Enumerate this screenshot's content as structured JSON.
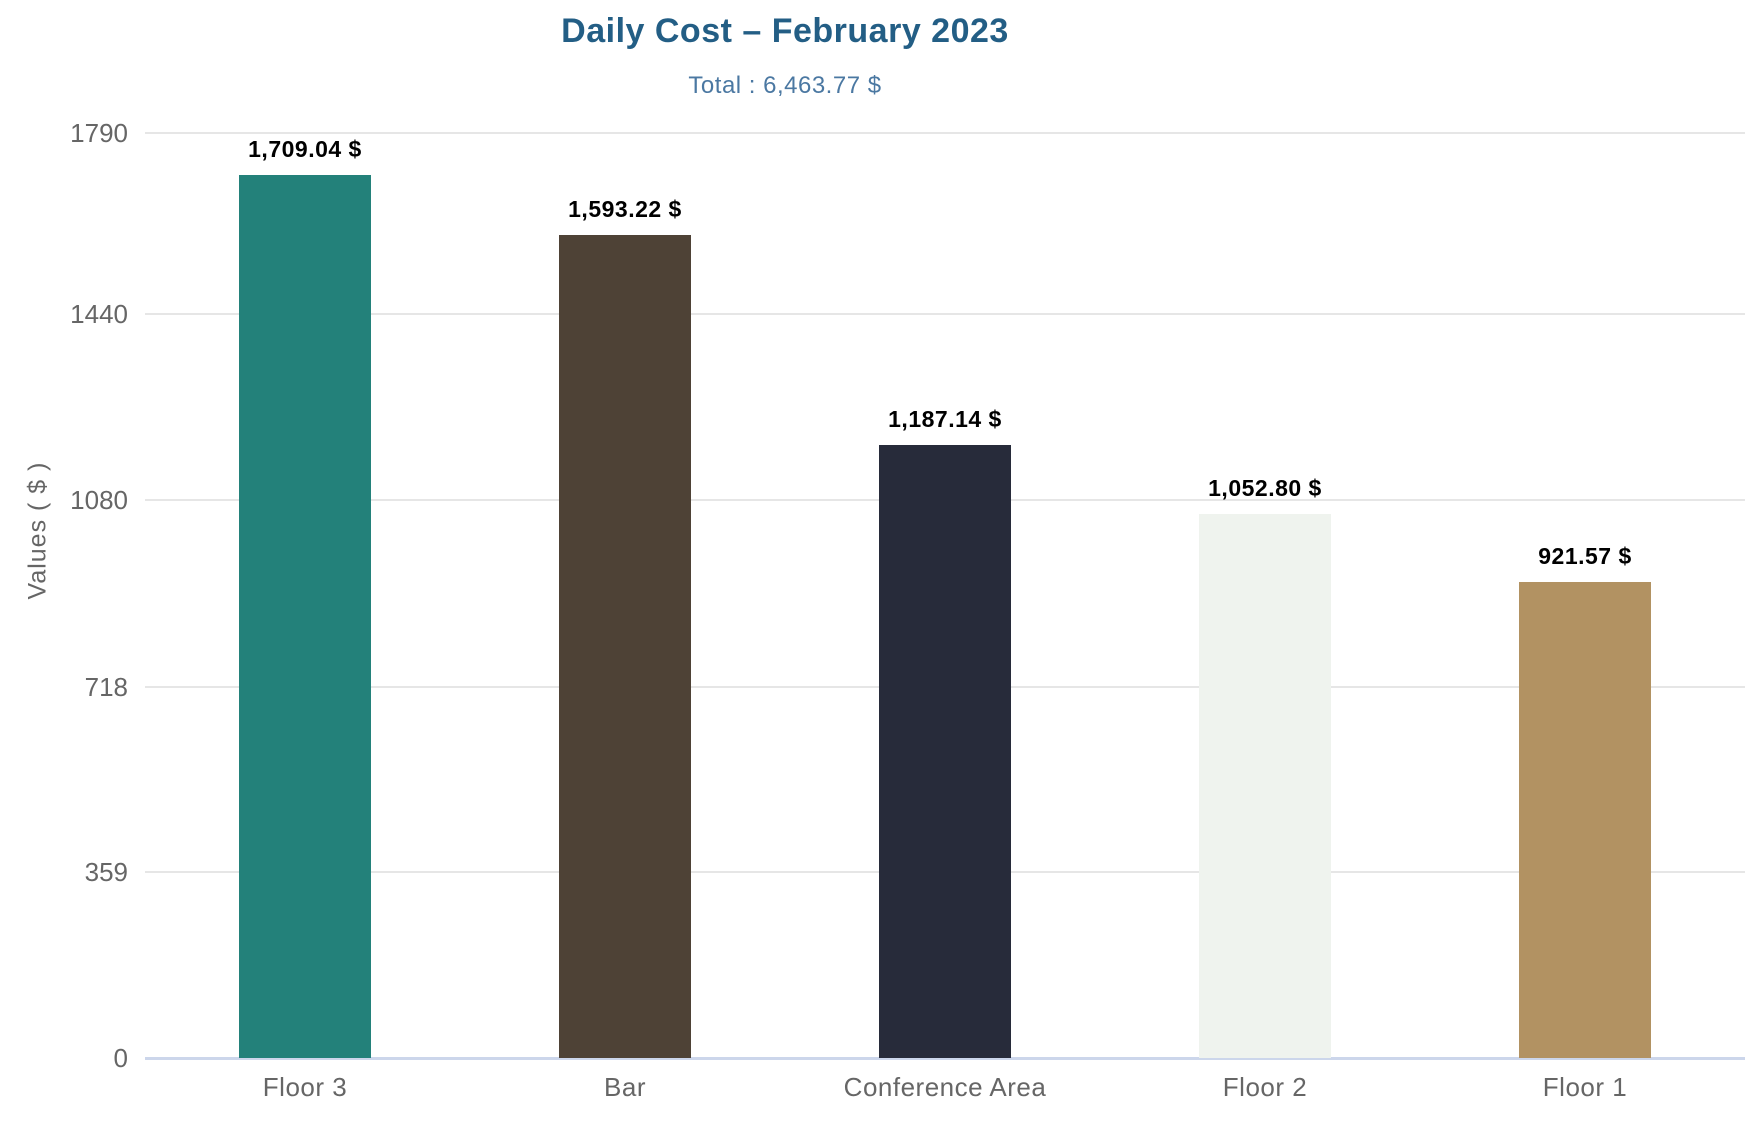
{
  "header": {
    "title": "Daily Cost – February 2023",
    "subtitle": "Total : 6,463.77 $"
  },
  "chart_data": {
    "type": "bar",
    "title": "Daily Cost – February 2023",
    "subtitle": "Total : 6,463.77 $",
    "xlabel": "",
    "ylabel": "Values ( $ )",
    "categories": [
      "Floor 3",
      "Bar",
      "Conference Area",
      "Floor 2",
      "Floor 1"
    ],
    "values": [
      1709.04,
      1593.22,
      1187.14,
      1052.8,
      921.57
    ],
    "value_labels": [
      "1,709.04 $",
      "1,593.22 $",
      "1,187.14 $",
      "1,052.80 $",
      "921.57 $"
    ],
    "bar_colors": [
      "#23817a",
      "#4e4236",
      "#272b3a",
      "#eff3ee",
      "#b29262"
    ],
    "yticks": [
      0,
      359,
      718,
      1080,
      1440,
      1790
    ],
    "ylim": [
      0,
      1790
    ],
    "grid": true,
    "legend": "none",
    "colors": {
      "title": "#235e85",
      "subtitle": "#4b78a2",
      "axis_title": "#666666",
      "tick_label": "#666666",
      "category_label": "#666666",
      "gridline": "#e6e6e6",
      "axis_line": "#ccd6eb",
      "data_label": "#000000"
    }
  }
}
